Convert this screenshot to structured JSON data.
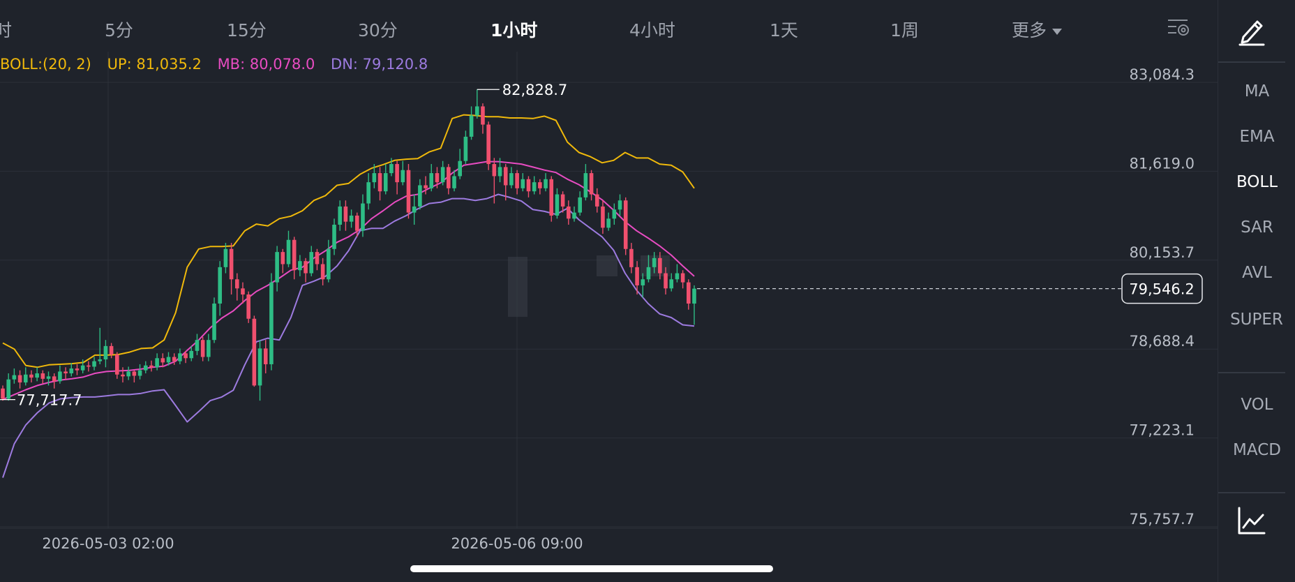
{
  "tabs": [
    {
      "label": "时",
      "active": false
    },
    {
      "label": "5分",
      "active": false
    },
    {
      "label": "15分",
      "active": false
    },
    {
      "label": "30分",
      "active": false
    },
    {
      "label": "1小时",
      "active": true
    },
    {
      "label": "4小时",
      "active": false
    },
    {
      "label": "1天",
      "active": false
    },
    {
      "label": "1周",
      "active": false
    },
    {
      "label": "更多",
      "active": false,
      "dropdown": true
    }
  ],
  "legend": {
    "boll": "BOLL:(20, 2)",
    "up": "UP: 81,035.2",
    "mb": "MB: 80,078.0",
    "dn": "DN: 79,120.8"
  },
  "sidebar": {
    "items": [
      "MA",
      "EMA",
      "BOLL",
      "SAR",
      "AVL",
      "SUPER",
      "VOL",
      "MACD"
    ],
    "active": "BOLL",
    "icons": [
      "pencil-icon",
      "chart-line-icon"
    ]
  },
  "colors": {
    "background": "#1f232b",
    "up_candle": "#2ebd85",
    "down_candle": "#f0506e",
    "boll_upper": "#f0b90b",
    "boll_mid": "#e84cc2",
    "boll_lower": "#9d7be0"
  },
  "chart_data": {
    "type": "candlestick",
    "interval": "1小时",
    "y_ticks": [
      "83,084.3",
      "81,619.0",
      "80,153.7",
      "78,688.4",
      "77,223.1",
      "75,757.7"
    ],
    "ylim": [
      75757.7,
      83084.3
    ],
    "x_ticks": [
      "2026-05-03 02:00",
      "2026-05-06 09:00"
    ],
    "max_label": "82,828.7",
    "min_label": "77,717.7",
    "last_price": "79,546.2",
    "last_price_value": 79546.2,
    "indicator": "BOLL",
    "bollinger": {
      "upper": [
        78650,
        78550,
        78280,
        78250,
        78290,
        78300,
        78310,
        78330,
        78450,
        78450,
        78460,
        78500,
        78560,
        78570,
        78700,
        79150,
        79900,
        80200,
        80240,
        80240,
        80250,
        80500,
        80610,
        80580,
        80700,
        80740,
        80830,
        81000,
        81080,
        81250,
        81280,
        81430,
        81530,
        81590,
        81660,
        81680,
        81690,
        81800,
        81860,
        82350,
        82410,
        82400,
        82380,
        82380,
        82360,
        82360,
        82350,
        82390,
        82320,
        81960,
        81790,
        81720,
        81620,
        81660,
        81790,
        81700,
        81700,
        81600,
        81580,
        81470,
        81200
      ],
      "middle": [
        77720,
        77800,
        77880,
        77950,
        78000,
        78040,
        78060,
        78090,
        78150,
        78180,
        78190,
        78200,
        78220,
        78250,
        78270,
        78350,
        78530,
        78700,
        78900,
        79060,
        79180,
        79350,
        79500,
        79600,
        79720,
        79850,
        79900,
        80050,
        80170,
        80310,
        80400,
        80520,
        80700,
        80830,
        80970,
        81070,
        81100,
        81200,
        81290,
        81450,
        81580,
        81610,
        81640,
        81640,
        81620,
        81600,
        81550,
        81500,
        81460,
        81350,
        81260,
        81140,
        81010,
        80840,
        80650,
        80500,
        80380,
        80250,
        80100,
        79920,
        79750
      ],
      "lower": [
        76430,
        76990,
        77300,
        77500,
        77660,
        77730,
        77750,
        77760,
        77760,
        77780,
        77800,
        77800,
        77820,
        77860,
        77880,
        77620,
        77350,
        77520,
        77700,
        77760,
        77870,
        78290,
        78670,
        78730,
        78700,
        79070,
        79600,
        79670,
        79750,
        79920,
        80170,
        80500,
        80540,
        80540,
        80660,
        80750,
        80860,
        80950,
        80970,
        81030,
        81030,
        81000,
        81030,
        81100,
        81050,
        80990,
        80850,
        80820,
        80770,
        80870,
        80680,
        80540,
        80400,
        80180,
        79800,
        79520,
        79300,
        79130,
        79070,
        78950,
        78930
      ]
    },
    "candles": [
      [
        77900,
        77730,
        77950,
        77700
      ],
      [
        77730,
        78050,
        78150,
        77700
      ],
      [
        78050,
        78120,
        78230,
        77980
      ],
      [
        78120,
        78000,
        78200,
        77900
      ],
      [
        78000,
        78130,
        78250,
        77950
      ],
      [
        78130,
        78080,
        78200,
        78000
      ],
      [
        78080,
        78150,
        78250,
        78020
      ],
      [
        78150,
        78060,
        78200,
        77980
      ],
      [
        78060,
        78100,
        78180,
        77950
      ],
      [
        78100,
        78020,
        78150,
        77900
      ],
      [
        78020,
        78180,
        78280,
        77980
      ],
      [
        78180,
        78150,
        78250,
        78050
      ],
      [
        78150,
        78230,
        78320,
        78100
      ],
      [
        78230,
        78200,
        78300,
        78120
      ],
      [
        78200,
        78280,
        78380,
        78150
      ],
      [
        78280,
        78260,
        78350,
        78180
      ],
      [
        78260,
        78350,
        78420,
        78200
      ],
      [
        78350,
        78380,
        78900,
        78300
      ],
      [
        78380,
        78600,
        78700,
        78250
      ],
      [
        78600,
        78460,
        78650,
        78400
      ],
      [
        78460,
        78130,
        78500,
        78060
      ],
      [
        78130,
        78100,
        78250,
        78000
      ],
      [
        78100,
        78180,
        78260,
        78040
      ],
      [
        78180,
        78110,
        78200,
        78000
      ],
      [
        78110,
        78200,
        78300,
        78050
      ],
      [
        78200,
        78280,
        78350,
        78150
      ],
      [
        78280,
        78250,
        78360,
        78180
      ],
      [
        78250,
        78400,
        78480,
        78200
      ],
      [
        78400,
        78330,
        78480,
        78250
      ],
      [
        78330,
        78420,
        78500,
        78280
      ],
      [
        78420,
        78350,
        78480,
        78290
      ],
      [
        78350,
        78480,
        78560,
        78300
      ],
      [
        78480,
        78400,
        78520,
        78320
      ],
      [
        78400,
        78520,
        78600,
        78350
      ],
      [
        78520,
        78700,
        78800,
        78450
      ],
      [
        78700,
        78420,
        78750,
        78350
      ],
      [
        78420,
        78700,
        78800,
        78350
      ],
      [
        78700,
        79300,
        79400,
        78650
      ],
      [
        79300,
        79900,
        80000,
        79100
      ],
      [
        79900,
        80200,
        80300,
        79800
      ],
      [
        80200,
        79700,
        80300,
        79450
      ],
      [
        79700,
        79550,
        79800,
        79350
      ],
      [
        79550,
        79450,
        79650,
        79300
      ],
      [
        79450,
        79050,
        79500,
        78980
      ],
      [
        79050,
        77950,
        79100,
        77930
      ],
      [
        77950,
        78560,
        78700,
        77700
      ],
      [
        78560,
        78300,
        78700,
        78150
      ],
      [
        78300,
        79650,
        79800,
        78200
      ],
      [
        79650,
        80150,
        80250,
        79500
      ],
      [
        80150,
        79950,
        80200,
        79800
      ],
      [
        79950,
        80350,
        80500,
        79900
      ],
      [
        80350,
        79850,
        80400,
        79700
      ],
      [
        79850,
        80000,
        80100,
        79750
      ],
      [
        80000,
        79800,
        80050,
        79650
      ],
      [
        79800,
        80150,
        80250,
        79750
      ],
      [
        80150,
        79950,
        80200,
        79850
      ],
      [
        79950,
        79700,
        80050,
        79600
      ],
      [
        79700,
        80200,
        80350,
        79650
      ],
      [
        80200,
        80600,
        80700,
        80100
      ],
      [
        80600,
        80900,
        81000,
        80500
      ],
      [
        80900,
        80650,
        81000,
        80500
      ],
      [
        80650,
        80750,
        80850,
        80550
      ],
      [
        80750,
        80500,
        80800,
        80400
      ],
      [
        80500,
        80950,
        81100,
        80400
      ],
      [
        80950,
        81300,
        81450,
        80850
      ],
      [
        81300,
        81450,
        81600,
        81200
      ],
      [
        81450,
        81150,
        81550,
        81000
      ],
      [
        81150,
        81450,
        81600,
        81100
      ],
      [
        81450,
        81600,
        81700,
        81400
      ],
      [
        81600,
        81300,
        81650,
        81100
      ],
      [
        81300,
        81500,
        81650,
        81250
      ],
      [
        81500,
        80800,
        81600,
        80700
      ],
      [
        80800,
        80900,
        81100,
        80600
      ],
      [
        80900,
        81250,
        81350,
        80850
      ],
      [
        81250,
        81200,
        81400,
        81100
      ],
      [
        81200,
        81450,
        81600,
        81150
      ],
      [
        81450,
        81300,
        81550,
        81200
      ],
      [
        81300,
        81550,
        81650,
        81250
      ],
      [
        81550,
        81200,
        81600,
        81100
      ],
      [
        81200,
        81400,
        81500,
        81150
      ],
      [
        81400,
        81650,
        81850,
        81350
      ],
      [
        81650,
        82050,
        82150,
        81600
      ],
      [
        82050,
        82400,
        82550,
        82000
      ],
      [
        82400,
        82550,
        82829,
        82350
      ],
      [
        82550,
        82250,
        82600,
        82100
      ],
      [
        82250,
        81600,
        82300,
        81500
      ],
      [
        81600,
        81400,
        81700,
        80950
      ],
      [
        81400,
        81550,
        81700,
        81300
      ],
      [
        81550,
        81250,
        81600,
        81000
      ],
      [
        81250,
        81450,
        81550,
        81200
      ],
      [
        81450,
        81200,
        81500,
        81100
      ],
      [
        81200,
        81350,
        81450,
        81150
      ],
      [
        81350,
        81150,
        81400,
        81050
      ],
      [
        81150,
        81300,
        81400,
        81100
      ],
      [
        81300,
        81200,
        81350,
        81100
      ],
      [
        81200,
        81350,
        81450,
        81150
      ],
      [
        81350,
        80750,
        81400,
        80650
      ],
      [
        80750,
        81100,
        81200,
        80700
      ],
      [
        81100,
        80900,
        81150,
        80800
      ],
      [
        80900,
        80700,
        81000,
        80600
      ],
      [
        80700,
        80800,
        80900,
        80650
      ],
      [
        80800,
        81050,
        81150,
        80750
      ],
      [
        81050,
        81450,
        81600,
        81000
      ],
      [
        81450,
        81100,
        81500,
        81000
      ],
      [
        81100,
        80900,
        81200,
        80800
      ],
      [
        80900,
        80550,
        81000,
        80450
      ],
      [
        80550,
        80700,
        80800,
        80500
      ],
      [
        80700,
        80850,
        80950,
        80600
      ],
      [
        80850,
        81000,
        81100,
        80750
      ],
      [
        81000,
        80200,
        81050,
        80100
      ],
      [
        80200,
        79900,
        80300,
        79800
      ],
      [
        79900,
        79600,
        80000,
        79450
      ],
      [
        79600,
        79700,
        79800,
        79400
      ],
      [
        79700,
        79900,
        80100,
        79650
      ],
      [
        79900,
        80050,
        80150,
        79800
      ],
      [
        80050,
        79800,
        80150,
        79700
      ],
      [
        79800,
        79550,
        79900,
        79450
      ],
      [
        79550,
        79700,
        79800,
        79500
      ],
      [
        79700,
        79800,
        79950,
        79650
      ],
      [
        79800,
        79650,
        79850,
        79550
      ],
      [
        79650,
        79300,
        79700,
        79200
      ],
      [
        79300,
        79546,
        79600,
        78950
      ]
    ]
  }
}
